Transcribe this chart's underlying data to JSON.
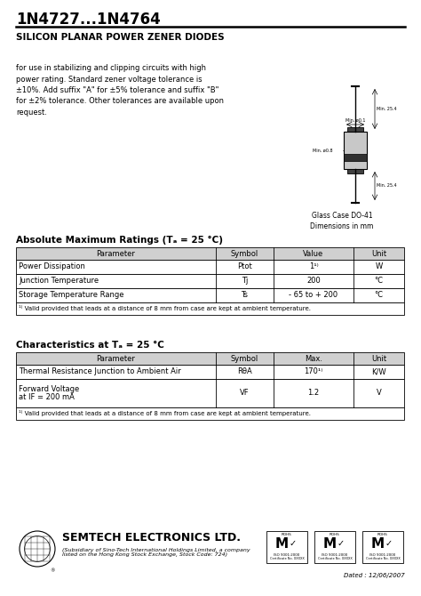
{
  "title": "1N4727...1N4764",
  "subtitle": "SILICON PLANAR POWER ZENER DIODES",
  "description": "for use in stabilizing and clipping circuits with high\npower rating. Standard zener voltage tolerance is\n±10%. Add suffix \"A\" for ±5% tolerance and suffix \"B\"\nfor ±2% tolerance. Other tolerances are available upon\nrequest.",
  "package_label": "Glass Case DO-41\nDimensions in mm",
  "abs_max_title": "Absolute Maximum Ratings (Tₐ = 25 °C)",
  "abs_max_header": [
    "Parameter",
    "Symbol",
    "Value",
    "Unit"
  ],
  "abs_max_rows": [
    [
      "Power Dissipation",
      "Ptot",
      "1¹⁾",
      "W"
    ],
    [
      "Junction Temperature",
      "Tj",
      "200",
      "°C"
    ],
    [
      "Storage Temperature Range",
      "Ts",
      "- 65 to + 200",
      "°C"
    ]
  ],
  "abs_max_footnote": "¹⁾ Valid provided that leads at a distance of 8 mm from case are kept at ambient temperature.",
  "char_title": "Characteristics at Tₐ = 25 °C",
  "char_header": [
    "Parameter",
    "Symbol",
    "Max.",
    "Unit"
  ],
  "char_rows": [
    [
      "Thermal Resistance Junction to Ambient Air",
      "RθA",
      "170¹⁾",
      "K/W"
    ],
    [
      "Forward Voltage\nat IF = 200 mA",
      "VF",
      "1.2",
      "V"
    ]
  ],
  "char_footnote": "¹⁾ Valid provided that leads at a distance of 8 mm from case are kept at ambient temperature.",
  "company_name": "SEMTECH ELECTRONICS LTD.",
  "company_sub": "(Subsidiary of Sino-Tech International Holdings Limited, a company\nlisted on the Hong Kong Stock Exchange, Stock Code: 724)",
  "date_text": "Dated : 12/06/2007",
  "bg_color": "#ffffff",
  "text_color": "#000000"
}
